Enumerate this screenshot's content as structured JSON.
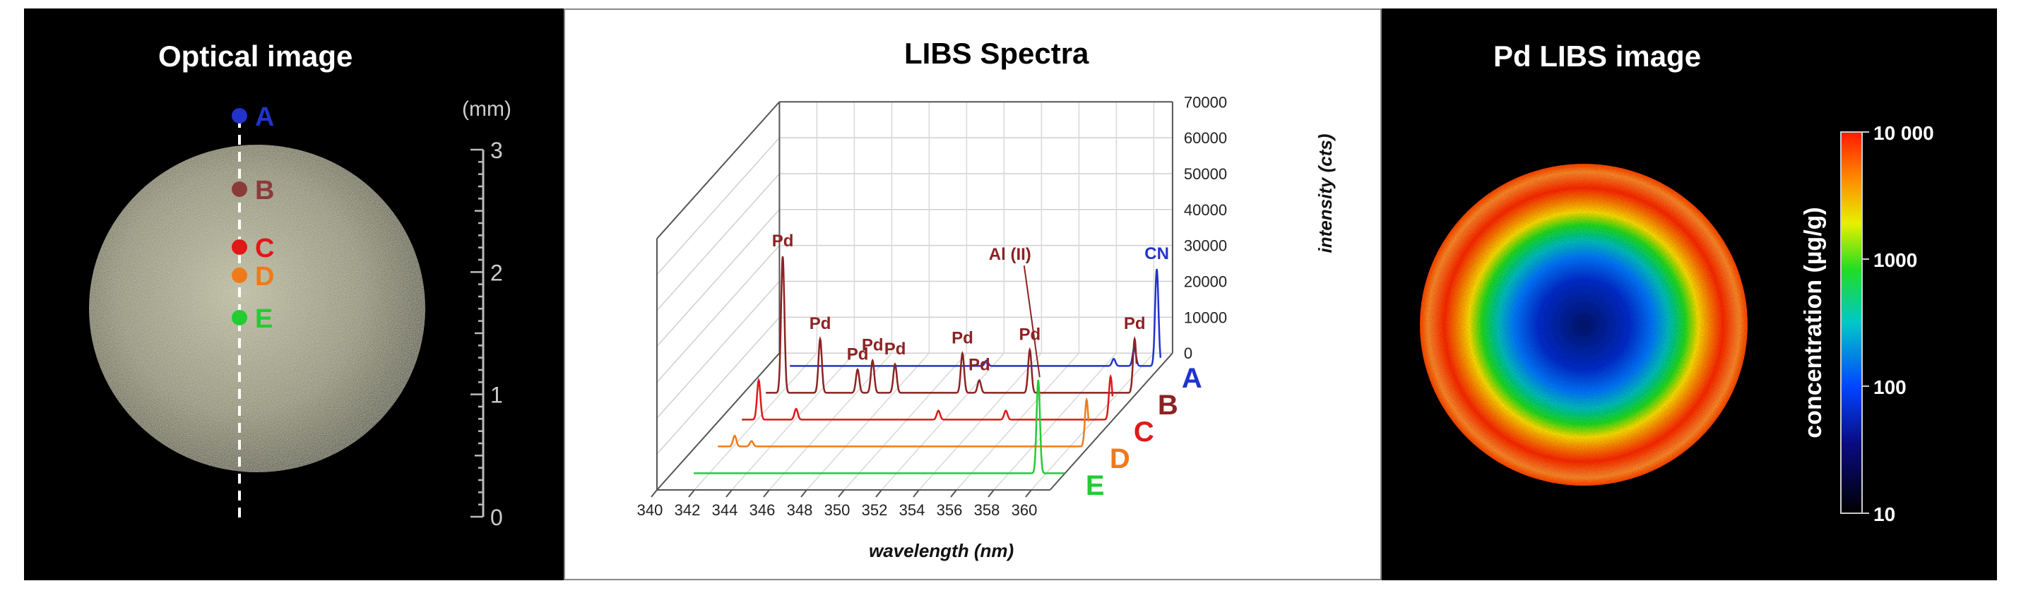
{
  "panels": {
    "optical": {
      "title": "Optical image"
    },
    "spectra": {
      "title": "LIBS Spectra"
    },
    "libs_image": {
      "title": "Pd LIBS image"
    }
  },
  "optical": {
    "scale_unit": "(mm)",
    "scale_ticks": [
      "3",
      "2",
      "1",
      "0"
    ],
    "points": [
      {
        "label": "A",
        "color": "#2233cc"
      },
      {
        "label": "B",
        "color": "#8b3a3a"
      },
      {
        "label": "C",
        "color": "#e01818"
      },
      {
        "label": "D",
        "color": "#f07a1a"
      },
      {
        "label": "E",
        "color": "#22cc33"
      }
    ]
  },
  "colorbar": {
    "label": "concentration (µg/g)",
    "ticks": [
      "10 000",
      "1000",
      "100",
      "10"
    ],
    "scale": "log"
  },
  "chart_data": {
    "type": "line",
    "title": "LIBS Spectra",
    "xlabel": "wavelength (nm)",
    "zlabel": "intensity (cts)",
    "xlim": [
      340,
      361
    ],
    "zlim": [
      0,
      70000
    ],
    "x_ticks": [
      "340",
      "342",
      "344",
      "346",
      "348",
      "350",
      "352",
      "354",
      "356",
      "358",
      "360"
    ],
    "z_ticks": [
      "70000",
      "60000",
      "50000",
      "40000",
      "30000",
      "20000",
      "10000",
      "0"
    ],
    "series": [
      {
        "name": "A",
        "color": "#2233cc",
        "baseline": 0,
        "peaks": [
          [
            351.7,
            1500
          ],
          [
            358.5,
            2000
          ],
          [
            359.6,
            5000
          ],
          [
            360.8,
            27000
          ]
        ]
      },
      {
        "name": "B",
        "color": "#8b2323",
        "baseline": 0,
        "peaks": [
          [
            342.1,
            38000
          ],
          [
            344.1,
            15000
          ],
          [
            346.1,
            6500
          ],
          [
            346.9,
            9000
          ],
          [
            348.1,
            8000
          ],
          [
            351.7,
            11000
          ],
          [
            352.6,
            3500
          ],
          [
            355.3,
            12000
          ],
          [
            360.9,
            15000
          ]
        ]
      },
      {
        "name": "C",
        "color": "#e01818",
        "baseline": 0,
        "peaks": [
          [
            342.1,
            11000
          ],
          [
            344.1,
            3000
          ],
          [
            351.7,
            2500
          ],
          [
            355.3,
            2500
          ],
          [
            360.9,
            12000
          ]
        ]
      },
      {
        "name": "D",
        "color": "#f07a1a",
        "baseline": 0,
        "peaks": [
          [
            342.1,
            3000
          ],
          [
            343.0,
            1500
          ],
          [
            360.9,
            13000
          ]
        ]
      },
      {
        "name": "E",
        "color": "#22cc33",
        "baseline": 0,
        "peaks": [
          [
            359.6,
            26000
          ]
        ]
      }
    ],
    "annotations": [
      {
        "text": "Pd",
        "x": 342.1,
        "series": "B"
      },
      {
        "text": "Pd",
        "x": 344.1,
        "series": "B"
      },
      {
        "text": "Pd",
        "x": 346.1,
        "series": "B"
      },
      {
        "text": "Pd",
        "x": 346.9,
        "series": "B"
      },
      {
        "text": "Pd",
        "x": 348.1,
        "series": "B"
      },
      {
        "text": "Pd",
        "x": 351.7,
        "series": "B"
      },
      {
        "text": "Pd",
        "x": 352.6,
        "series": "B"
      },
      {
        "text": "Pd",
        "x": 355.3,
        "series": "B"
      },
      {
        "text": "Pd",
        "x": 360.9,
        "series": "B"
      },
      {
        "text": "Al (II)",
        "x": 359.6,
        "series": "E"
      },
      {
        "text": "CN",
        "x": 360.8,
        "series": "A"
      }
    ]
  }
}
